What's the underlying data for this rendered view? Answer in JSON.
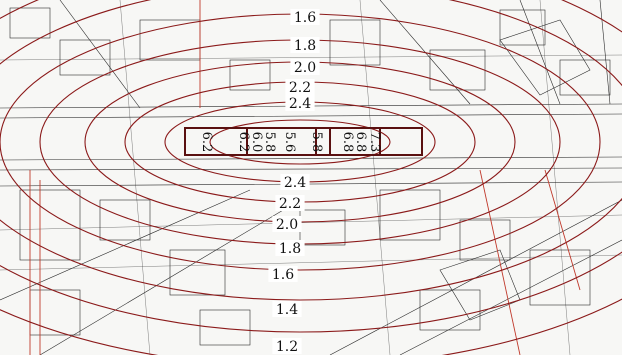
{
  "map": {
    "contour_color": "#8b1a1a",
    "base_line_color": "#1f1f1f",
    "road_color": "#c0392b",
    "contour_labels_upper": [
      "1.6",
      "1.8",
      "2.0",
      "2.2",
      "2.4"
    ],
    "contour_labels_lower": [
      "2.4",
      "2.2",
      "2.0",
      "1.8",
      "1.6",
      "1.4",
      "1.2"
    ],
    "building_labels": [
      "6.2",
      "6.2",
      "6.0",
      "5.8",
      "5.6",
      "5.8",
      "6.8",
      "7.3",
      "6.8"
    ]
  }
}
